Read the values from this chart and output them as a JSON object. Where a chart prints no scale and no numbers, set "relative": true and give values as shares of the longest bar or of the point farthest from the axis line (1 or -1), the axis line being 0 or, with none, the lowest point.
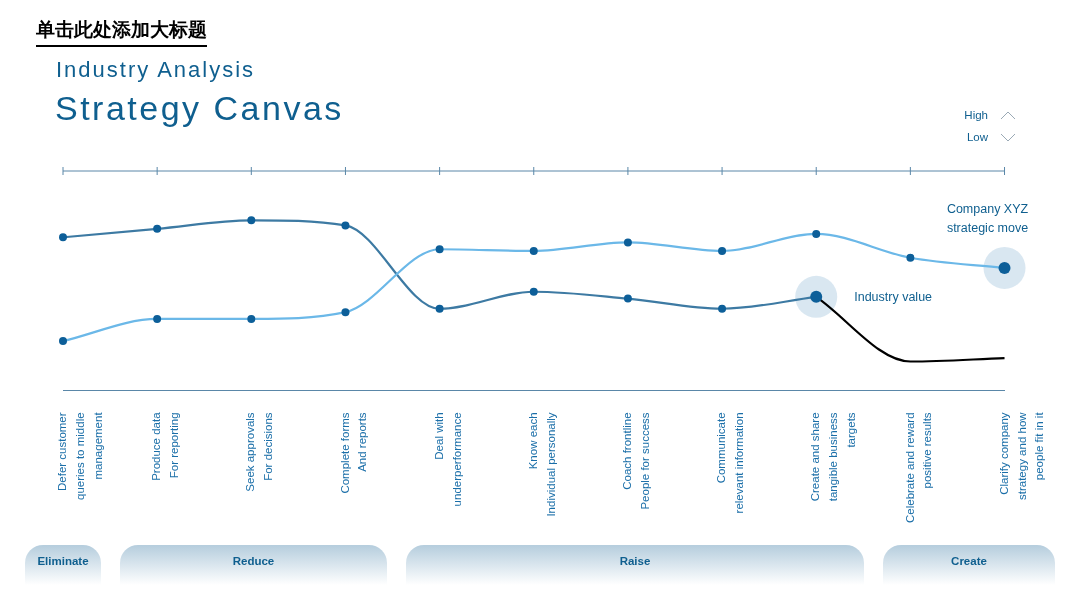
{
  "chart_data": {
    "type": "line",
    "title": "Strategy Canvas",
    "subtitle": "Industry Analysis",
    "categories": [
      "Defer customer\nqueries to middle\nmanagement",
      "Produce data\nFor reporting",
      "Seek approvals\nFor decisions",
      "Complete forms\nAnd reports",
      "Deal with\nunderperformance",
      "Know each\nIndividual personally",
      "Coach frontline\nPeople for success",
      "Communicate\nrelevant information",
      "Create and share\ntangible business\ntargets",
      "Celebrate and reward\npositive results",
      "Clarify company\nstrategy and how\npeople fit in it"
    ],
    "relative": true,
    "series": [
      {
        "name": "Company XYZ strategic move",
        "color": "#6bb8e8",
        "values": [
          0.29,
          0.42,
          0.42,
          0.46,
          0.83,
          0.82,
          0.87,
          0.82,
          0.92,
          0.78,
          0.72
        ]
      },
      {
        "name": "Industry value",
        "color": "#3d7aa3",
        "values": [
          0.9,
          0.95,
          1.0,
          0.97,
          0.48,
          0.58,
          0.54,
          0.48,
          0.55,
          null,
          null
        ]
      },
      {
        "color": "#000000",
        "marker": "none",
        "values": [
          null,
          null,
          null,
          null,
          null,
          null,
          null,
          null,
          0.55,
          0.17,
          0.19
        ]
      }
    ],
    "annotations": [
      "单击此处添加大标题",
      "High",
      "Low",
      "Eliminate",
      "Reduce",
      "Raise",
      "Create"
    ],
    "marker": "circle",
    "line_style": "solid",
    "grid": false,
    "legend": false
  }
}
